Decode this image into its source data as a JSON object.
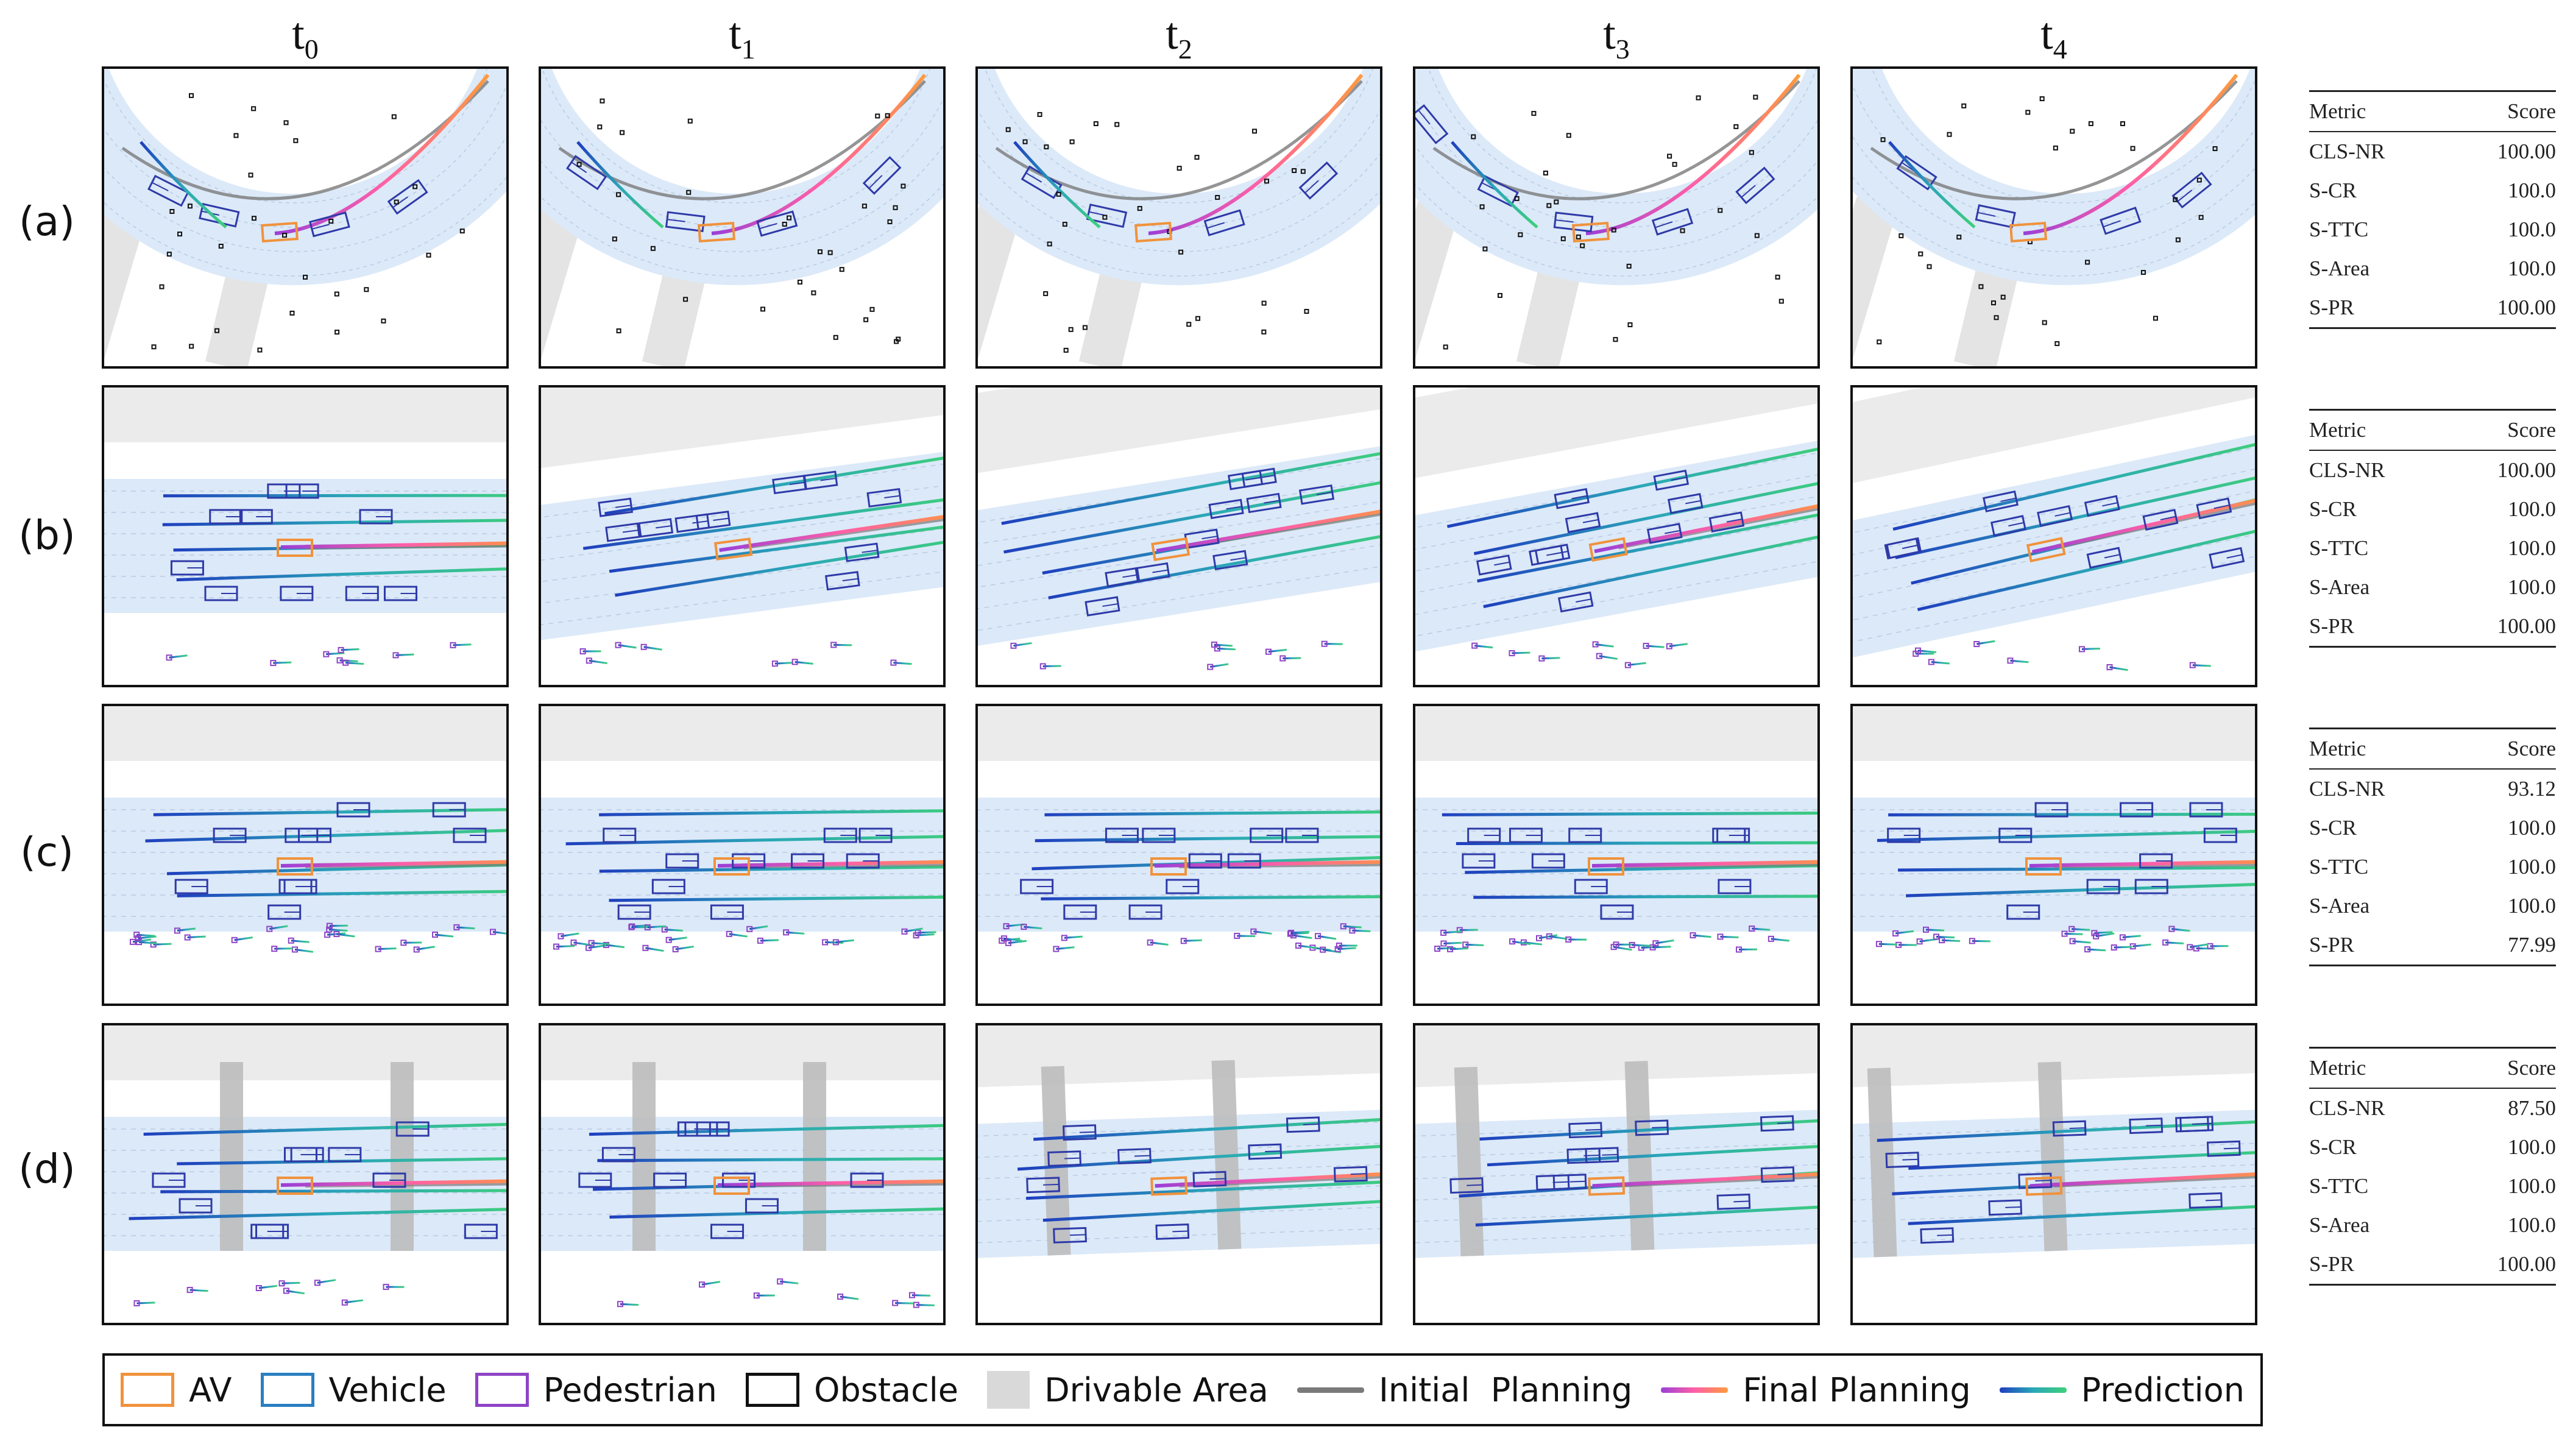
{
  "columns": [
    {
      "base": "t",
      "sub": "0"
    },
    {
      "base": "t",
      "sub": "1"
    },
    {
      "base": "t",
      "sub": "2"
    },
    {
      "base": "t",
      "sub": "3"
    },
    {
      "base": "t",
      "sub": "4"
    }
  ],
  "rows": [
    {
      "label": "(a)",
      "table": {
        "header": {
          "metric": "Metric",
          "score": "Score"
        },
        "metrics": [
          {
            "name": "CLS-NR",
            "score": "100.00"
          },
          {
            "name": "S-CR",
            "score": "100.0"
          },
          {
            "name": "S-TTC",
            "score": "100.0"
          },
          {
            "name": "S-Area",
            "score": "100.0"
          },
          {
            "name": "S-PR",
            "score": "100.00"
          }
        ]
      }
    },
    {
      "label": "(b)",
      "table": {
        "header": {
          "metric": "Metric",
          "score": "Score"
        },
        "metrics": [
          {
            "name": "CLS-NR",
            "score": "100.00"
          },
          {
            "name": "S-CR",
            "score": "100.0"
          },
          {
            "name": "S-TTC",
            "score": "100.0"
          },
          {
            "name": "S-Area",
            "score": "100.0"
          },
          {
            "name": "S-PR",
            "score": "100.00"
          }
        ]
      }
    },
    {
      "label": "(c)",
      "table": {
        "header": {
          "metric": "Metric",
          "score": "Score"
        },
        "metrics": [
          {
            "name": "CLS-NR",
            "score": "93.12"
          },
          {
            "name": "S-CR",
            "score": "100.0"
          },
          {
            "name": "S-TTC",
            "score": "100.0"
          },
          {
            "name": "S-Area",
            "score": "100.0"
          },
          {
            "name": "S-PR",
            "score": "77.99"
          }
        ]
      }
    },
    {
      "label": "(d)",
      "table": {
        "header": {
          "metric": "Metric",
          "score": "Score"
        },
        "metrics": [
          {
            "name": "CLS-NR",
            "score": "87.50"
          },
          {
            "name": "S-CR",
            "score": "100.0"
          },
          {
            "name": "S-TTC",
            "score": "100.0"
          },
          {
            "name": "S-Area",
            "score": "100.0"
          },
          {
            "name": "S-PR",
            "score": "100.00"
          }
        ]
      }
    }
  ],
  "legend": [
    {
      "label": "AV",
      "kind": "box",
      "color": "#f0923c"
    },
    {
      "label": "Vehicle",
      "kind": "box",
      "color": "#2a7fc1"
    },
    {
      "label": "Pedestrian",
      "kind": "box",
      "color": "#8e44c6"
    },
    {
      "label": "Obstacle",
      "kind": "box",
      "color": "#111111"
    },
    {
      "label": "Drivable Area",
      "kind": "fill",
      "color": "#d9d9d9"
    },
    {
      "label": "Initial  Planning",
      "kind": "line",
      "color": "#7a7a7a"
    },
    {
      "label": "Final Planning",
      "kind": "gradient",
      "colors": [
        "#9b3fd6",
        "#ff5fa8",
        "#ff9a3c"
      ]
    },
    {
      "label": "Prediction",
      "kind": "gradient",
      "colors": [
        "#1f3fbf",
        "#2aa7b8",
        "#3fd07a"
      ]
    }
  ],
  "colors": {
    "av": "#f0923c",
    "vehicle": "#2e3aa8",
    "pedestrian": "#8e44c6",
    "obstacle": "#111111",
    "drivable": "#d9d9d9",
    "lane_band": "#dce9f8",
    "initial_planning": "#7a7a7a"
  }
}
